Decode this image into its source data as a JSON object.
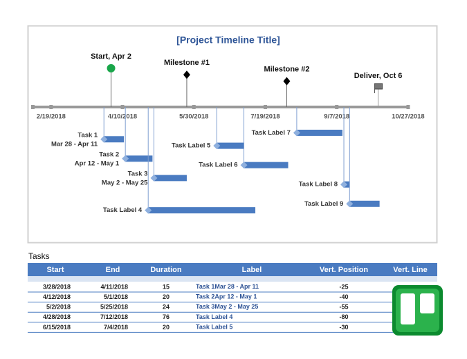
{
  "chart_data": {
    "type": "timeline",
    "title": "[Project Timeline Title]",
    "xlim": [
      "2/6/2018",
      "10/28/2018"
    ],
    "xticks": [
      "2/19/2018",
      "4/10/2018",
      "5/30/2018",
      "7/19/2018",
      "9/7/2018",
      "10/27/2018"
    ],
    "milestones": [
      {
        "label": "Start, Apr 2",
        "date": "4/2/2018",
        "height": 30,
        "marker": "circle",
        "color": "#19a64a"
      },
      {
        "label": "Milestone #1",
        "date": "5/25/2018",
        "height": 25,
        "marker": "diamond",
        "color": "#000000"
      },
      {
        "label": "Milestone #2",
        "date": "8/3/2018",
        "height": 20,
        "marker": "diamond",
        "color": "#000000"
      },
      {
        "label": "Deliver, Oct 6",
        "date": "10/6/2018",
        "height": 15,
        "marker": "flag",
        "color": "#777777"
      }
    ],
    "bar_color": "#4a7bc1",
    "tasks": [
      {
        "label": [
          "Task 1",
          "Mar 28 - Apr 11"
        ],
        "start": "3/28/2018",
        "end": "4/11/2018",
        "duration": 15,
        "position": -25
      },
      {
        "label": [
          "Task 2",
          "Apr 12 - May 1"
        ],
        "start": "4/12/2018",
        "end": "5/1/2018",
        "duration": 20,
        "position": -40
      },
      {
        "label": [
          "Task 3",
          "May 2 - May 25"
        ],
        "start": "5/2/2018",
        "end": "5/25/2018",
        "duration": 24,
        "position": -55
      },
      {
        "label": [
          "Task Label 4"
        ],
        "start": "4/28/2018",
        "end": "7/12/2018",
        "duration": 76,
        "position": -80
      },
      {
        "label": [
          "Task Label 5"
        ],
        "start": "6/15/2018",
        "end": "7/4/2018",
        "duration": 20,
        "position": -30
      },
      {
        "label": [
          "Task Label 6"
        ],
        "start": "7/4/2018",
        "end": "8/4/2018",
        "position": -45
      },
      {
        "label": [
          "Task Label 7"
        ],
        "start": "8/10/2018",
        "end": "9/11/2018",
        "position": -20
      },
      {
        "label": [
          "Task Label 8"
        ],
        "start": "9/12/2018",
        "end": "9/16/2018",
        "position": -60
      },
      {
        "label": [
          "Task Label 9"
        ],
        "start": "9/16/2018",
        "end": "10/7/2018",
        "position": -75
      }
    ]
  },
  "table": {
    "title": "Tasks",
    "columns": [
      "Start",
      "End",
      "Duration",
      "Label",
      "Vert. Position",
      "Vert. Line"
    ],
    "rows": 5
  }
}
